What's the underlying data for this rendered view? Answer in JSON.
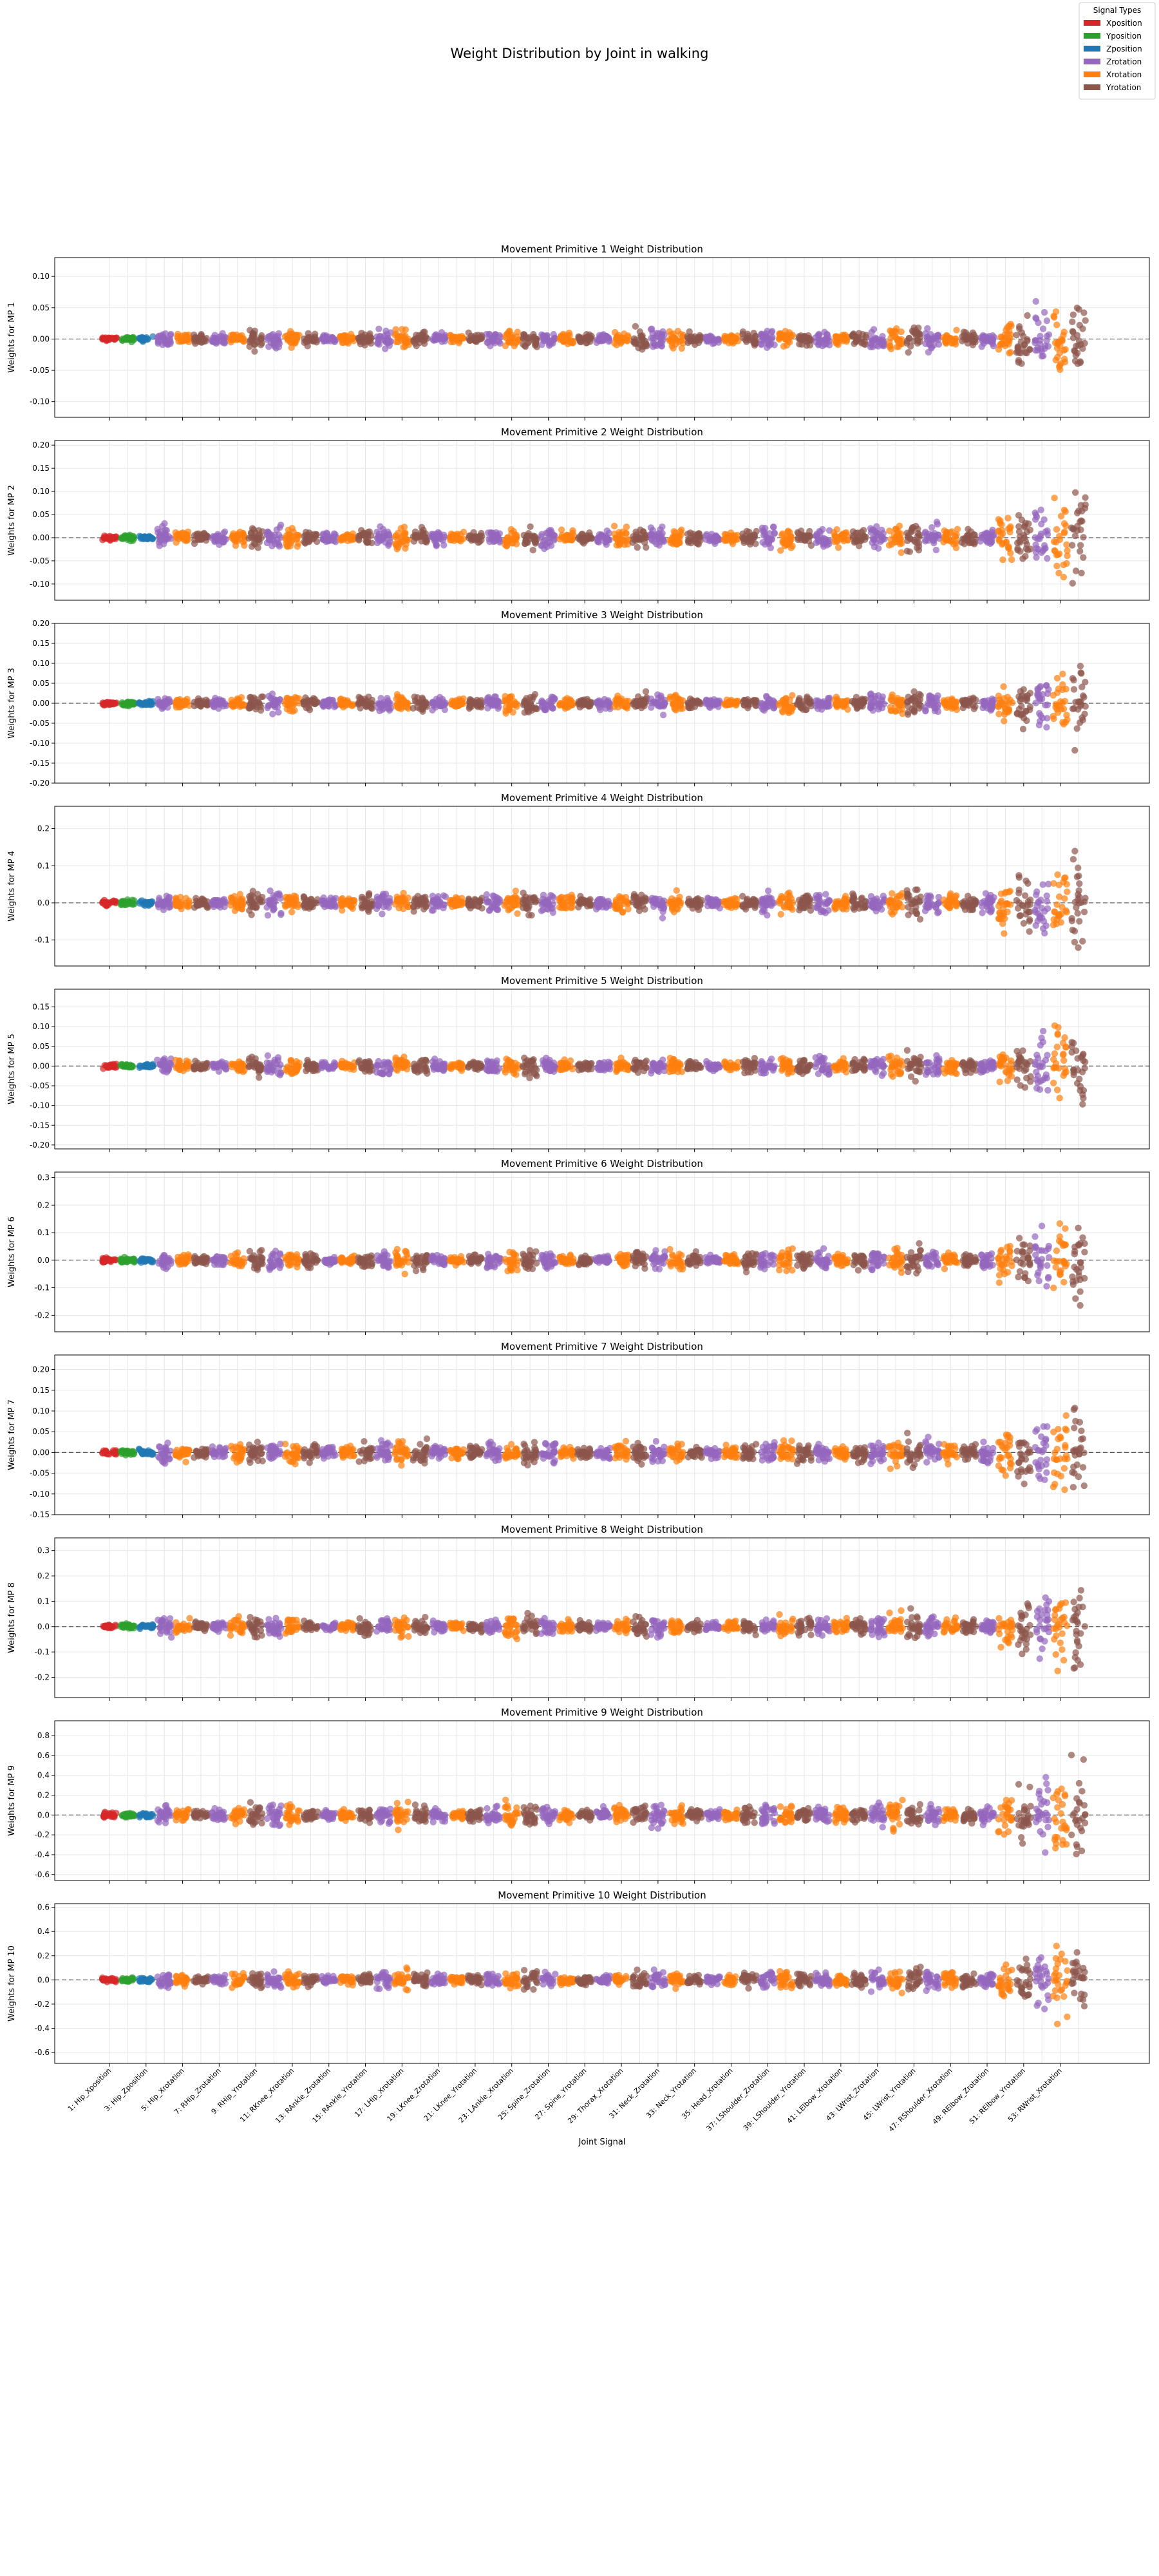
{
  "figure": {
    "title": "Weight Distribution by Joint in walking",
    "xlabel": "Joint Signal"
  },
  "legend": {
    "title": "Signal Types",
    "placement": "top-right",
    "items": [
      {
        "label": "Xposition",
        "color": "#d62728"
      },
      {
        "label": "Yposition",
        "color": "#2ca02c"
      },
      {
        "label": "Zposition",
        "color": "#1f77b4"
      },
      {
        "label": "Zrotation",
        "color": "#9467bd"
      },
      {
        "label": "Xrotation",
        "color": "#ff7f0e"
      },
      {
        "label": "Yrotation",
        "color": "#8c564b"
      }
    ]
  },
  "chart_data": {
    "type": "scatter",
    "style": "strip plot (jittered points per joint signal)",
    "grid": true,
    "zero_line": "dashed",
    "signal_count": 54,
    "visible_tick_labels": [
      "1: Hip_Xposition",
      "3: Hip_Zposition",
      "5: Hip_Xrotation",
      "7: RHip_Zrotation",
      "9: RHip_Yrotation",
      "11: RKnee_Xrotation",
      "13: RAnkle_Zrotation",
      "15: RAnkle_Yrotation",
      "17: LHip_Xrotation",
      "19: LKnee_Zrotation",
      "21: LKnee_Yrotation",
      "23: LAnkle_Xrotation",
      "25: Spine_Zrotation",
      "27: Spine_Yrotation",
      "29: Thorax_Xrotation",
      "31: Neck_Zrotation",
      "33: Neck_Yrotation",
      "35: Head_Xrotation",
      "37: LShoulder_Zrotation",
      "39: LShoulder_Yrotation",
      "41: LElbow_Xrotation",
      "43: LWrist_Zrotation",
      "45: LWrist_Yrotation",
      "47: RShoulder_Xrotation",
      "49: RElbow_Zrotation",
      "51: RElbow_Yrotation",
      "53: RWrist_Xrotation"
    ],
    "primitives": [
      {
        "title": "Movement Primitive 1 Weight Distribution",
        "ylabel": "Weights for MP 1",
        "ylim": [
          -0.125,
          0.13
        ],
        "yticks": [
          -0.1,
          -0.05,
          0.0,
          0.05,
          0.1,
          0.15
        ],
        "ytick_labels": [
          "-0.10",
          "-0.05",
          "0.00",
          "0.05",
          "0.10",
          ""
        ],
        "max_spread": 0.115
      },
      {
        "title": "Movement Primitive 2 Weight Distribution",
        "ylabel": "Weights for MP 2",
        "ylim": [
          -0.135,
          0.21
        ],
        "yticks": [
          -0.1,
          -0.05,
          0.0,
          0.05,
          0.1,
          0.15,
          0.2
        ],
        "ytick_labels": [
          "-0.10",
          "-0.05",
          "0.00",
          "0.05",
          "0.10",
          "0.15",
          "0.20"
        ],
        "max_spread": 0.19
      },
      {
        "title": "Movement Primitive 3 Weight Distribution",
        "ylabel": "Weights for MP 3",
        "ylim": [
          -0.2,
          0.2
        ],
        "yticks": [
          -0.2,
          -0.15,
          -0.1,
          -0.05,
          0.0,
          0.05,
          0.1,
          0.15,
          0.2
        ],
        "ytick_labels": [
          "-0.20",
          "-0.15",
          "-0.10",
          "-0.05",
          "0.00",
          "0.05",
          "0.10",
          "0.15",
          "0.20"
        ],
        "max_spread": 0.18
      },
      {
        "title": "Movement Primitive 4 Weight Distribution",
        "ylabel": "Weights for MP 4",
        "ylim": [
          -0.17,
          0.26
        ],
        "yticks": [
          -0.1,
          0.0,
          0.1,
          0.2
        ],
        "ytick_labels": [
          "-0.1",
          "0.0",
          "0.1",
          "0.2"
        ],
        "max_spread": 0.24
      },
      {
        "title": "Movement Primitive 5 Weight Distribution",
        "ylabel": "Weights for MP 5",
        "ylim": [
          -0.21,
          0.195
        ],
        "yticks": [
          -0.2,
          -0.15,
          -0.1,
          -0.05,
          0.0,
          0.05,
          0.1,
          0.15
        ],
        "ytick_labels": [
          "-0.20",
          "-0.15",
          "-0.10",
          "-0.05",
          "0.00",
          "0.05",
          "0.10",
          "0.15"
        ],
        "max_spread": 0.18
      },
      {
        "title": "Movement Primitive 6 Weight Distribution",
        "ylabel": "Weights for MP 6",
        "ylim": [
          -0.26,
          0.32
        ],
        "yticks": [
          -0.2,
          -0.1,
          0.0,
          0.1,
          0.2,
          0.3
        ],
        "ytick_labels": [
          "-0.2",
          "-0.1",
          "0.0",
          "0.1",
          "0.2",
          "0.3"
        ],
        "max_spread": 0.29
      },
      {
        "title": "Movement Primitive 7 Weight Distribution",
        "ylabel": "Weights for MP 7",
        "ylim": [
          -0.15,
          0.235
        ],
        "yticks": [
          -0.15,
          -0.1,
          -0.05,
          0.0,
          0.05,
          0.1,
          0.15,
          0.2
        ],
        "ytick_labels": [
          "-0.15",
          "-0.10",
          "-0.05",
          "0.00",
          "0.05",
          "0.10",
          "0.15",
          "0.20"
        ],
        "max_spread": 0.22
      },
      {
        "title": "Movement Primitive 8 Weight Distribution",
        "ylabel": "Weights for MP 8",
        "ylim": [
          -0.28,
          0.35
        ],
        "yticks": [
          -0.2,
          -0.1,
          0.0,
          0.1,
          0.2,
          0.3
        ],
        "ytick_labels": [
          "-0.2",
          "-0.1",
          "0.0",
          "0.1",
          "0.2",
          "0.3"
        ],
        "max_spread": 0.31
      },
      {
        "title": "Movement Primitive 9 Weight Distribution",
        "ylabel": "Weights for MP 9",
        "ylim": [
          -0.66,
          0.95
        ],
        "yticks": [
          -0.6,
          -0.4,
          -0.2,
          0.0,
          0.2,
          0.4,
          0.6,
          0.8
        ],
        "ytick_labels": [
          "-0.6",
          "-0.4",
          "-0.2",
          "0.0",
          "0.2",
          "0.4",
          "0.6",
          "0.8"
        ],
        "max_spread": 0.87
      },
      {
        "title": "Movement Primitive 10 Weight Distribution",
        "ylabel": "Weights for MP 10",
        "ylim": [
          -0.69,
          0.63
        ],
        "yticks": [
          -0.6,
          -0.4,
          -0.2,
          0.0,
          0.2,
          0.4,
          0.6
        ],
        "ytick_labels": [
          "-0.6",
          "-0.4",
          "-0.2",
          "0.0",
          "0.2",
          "0.4",
          "0.6"
        ],
        "max_spread": 0.6
      }
    ]
  }
}
